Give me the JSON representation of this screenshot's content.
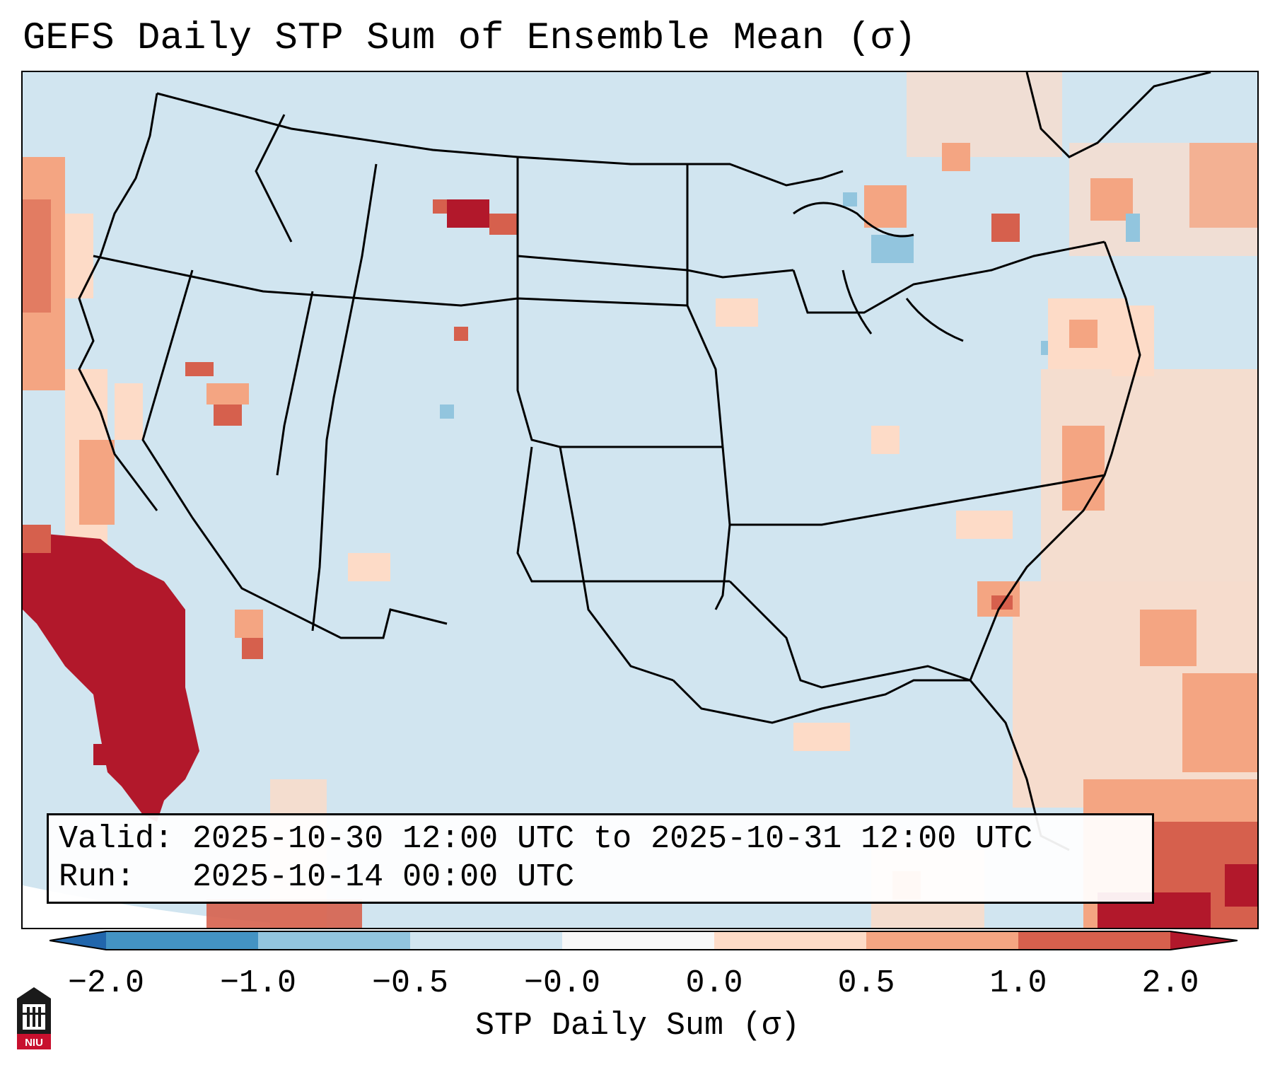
{
  "title": "GEFS Daily STP Sum of Ensemble Mean (σ)",
  "info": {
    "valid_label": "Valid:",
    "valid_value": "2025-10-30 12:00 UTC to 2025-10-31 12:00 UTC",
    "run_label": "Run:",
    "run_value": "2025-10-14 00:00 UTC"
  },
  "colorbar": {
    "title": "STP Daily Sum (σ)",
    "ticks": [
      "−2.0",
      "−1.0",
      "−0.5",
      "−0.0",
      "0.0",
      "0.5",
      "1.0",
      "2.0"
    ],
    "colors": [
      "#4393c3",
      "#92c5de",
      "#d1e5f0",
      "#f7f7f7",
      "#fddbc7",
      "#f4a582",
      "#d6604d",
      "#b2182b"
    ],
    "extend_low_color": "#2166ac",
    "extend_high_color": "#b2182b"
  },
  "colors": {
    "background_field": "#d1e5f0",
    "light_red": "#fddbc7",
    "medium_red": "#f4a582",
    "red": "#d6604d",
    "dark_red": "#b2182b",
    "light_blue": "#92c5de"
  },
  "logo": {
    "text": "NIU",
    "icon": "niu-logo-icon"
  }
}
